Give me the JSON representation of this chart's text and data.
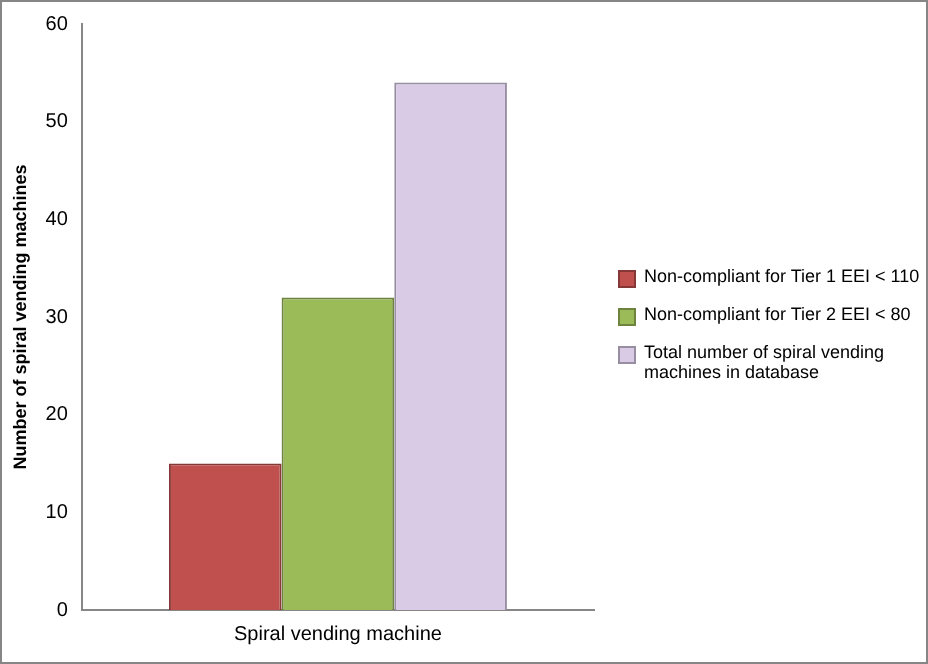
{
  "chart_data": {
    "type": "bar",
    "ylabel": "Number of spiral vending machines",
    "categories": [
      "Spiral vending machine"
    ],
    "series": [
      {
        "name": "Non-compliant for Tier 1 EEI < 110",
        "color": "#c0504d",
        "values": [
          15
        ]
      },
      {
        "name": "Non-compliant for Tier 2 EEI < 80",
        "color": "#9bbb59",
        "values": [
          32
        ]
      },
      {
        "name": "Total number of spiral vending machines in database",
        "color": "#d9cbe6",
        "values": [
          54
        ]
      }
    ],
    "ylim": [
      0,
      60
    ],
    "yticks": [
      0,
      10,
      20,
      30,
      40,
      50,
      60
    ],
    "legend": "right"
  }
}
